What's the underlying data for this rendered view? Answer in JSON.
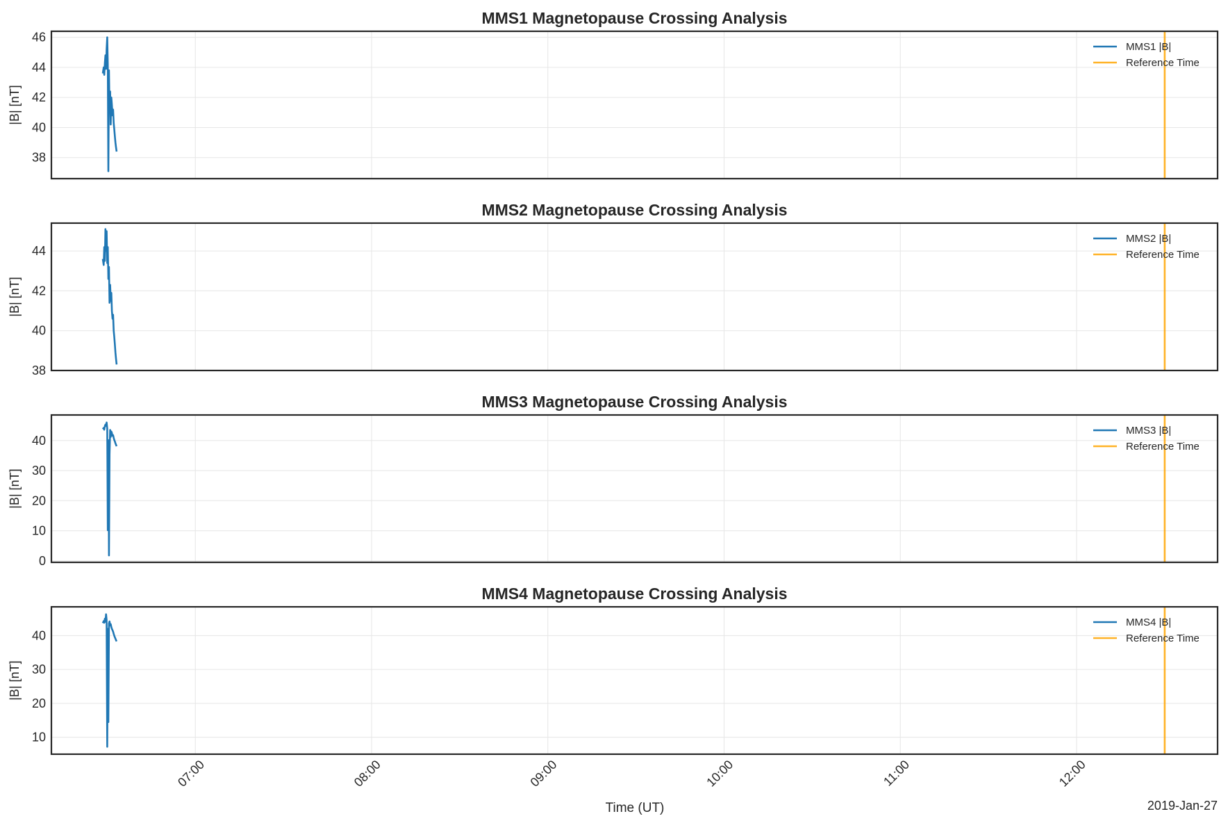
{
  "figure": {
    "xlabel": "Time (UT)",
    "date_label": "2019-Jan-27",
    "colors": {
      "data": "#1f77b4",
      "reference": "#ffa500",
      "grid": "#e6e6e6",
      "frame": "#262626"
    }
  },
  "chart_data": [
    {
      "type": "line",
      "title": "MMS1 Magnetopause Crossing Analysis",
      "ylabel": "|B| [nT]",
      "xlabel": "",
      "xlim": [
        "06:11",
        "12:48"
      ],
      "ylim": [
        36.6,
        46.4
      ],
      "yticks": [
        38,
        40,
        42,
        44,
        46
      ],
      "xticks": [
        "07:00",
        "08:00",
        "09:00",
        "10:00",
        "11:00",
        "12:00"
      ],
      "grid": true,
      "legend_position": "top-right",
      "series": [
        {
          "name": "MMS1 |B|",
          "x": [
            "06:28:30",
            "06:28:48",
            "06:29:00",
            "06:29:12",
            "06:29:24",
            "06:29:36",
            "06:29:48",
            "06:30:00",
            "06:30:12",
            "06:30:24",
            "06:30:36",
            "06:30:48",
            "06:31:00",
            "06:31:12",
            "06:31:24",
            "06:31:36",
            "06:31:48",
            "06:32:00",
            "06:32:12",
            "06:32:24",
            "06:32:36",
            "06:32:48",
            "06:33:00",
            "06:33:12"
          ],
          "y": [
            43.6,
            44.0,
            43.5,
            44.3,
            44.8,
            43.9,
            45.2,
            46.0,
            44.2,
            37.1,
            43.8,
            41.0,
            42.4,
            40.2,
            42.0,
            41.5,
            40.8,
            41.2,
            40.3,
            39.9,
            39.4,
            39.0,
            38.7,
            38.4
          ]
        },
        {
          "name": "Reference Time",
          "x": [
            "12:30:00",
            "12:30:00"
          ],
          "y": [
            36.6,
            46.4
          ]
        }
      ]
    },
    {
      "type": "line",
      "title": "MMS2 Magnetopause Crossing Analysis",
      "ylabel": "|B| [nT]",
      "xlabel": "",
      "xlim": [
        "06:11",
        "12:48"
      ],
      "ylim": [
        38.0,
        45.4
      ],
      "yticks": [
        38,
        40,
        42,
        44
      ],
      "xticks": [
        "07:00",
        "08:00",
        "09:00",
        "10:00",
        "11:00",
        "12:00"
      ],
      "grid": true,
      "legend_position": "top-right",
      "series": [
        {
          "name": "MMS2 |B|",
          "x": [
            "06:28:30",
            "06:28:48",
            "06:29:00",
            "06:29:12",
            "06:29:24",
            "06:29:36",
            "06:29:48",
            "06:30:00",
            "06:30:12",
            "06:30:24",
            "06:30:36",
            "06:30:48",
            "06:31:00",
            "06:31:12",
            "06:31:24",
            "06:31:36",
            "06:31:48",
            "06:32:00",
            "06:32:12",
            "06:32:24",
            "06:32:36",
            "06:32:48",
            "06:33:00",
            "06:33:12"
          ],
          "y": [
            43.6,
            43.3,
            44.2,
            43.5,
            45.1,
            44.0,
            45.0,
            43.4,
            44.2,
            42.6,
            43.2,
            41.4,
            42.3,
            41.5,
            41.9,
            41.0,
            40.6,
            40.8,
            40.0,
            39.7,
            39.3,
            38.9,
            38.6,
            38.3
          ]
        },
        {
          "name": "Reference Time",
          "x": [
            "12:30:00",
            "12:30:00"
          ],
          "y": [
            38.0,
            45.4
          ]
        }
      ]
    },
    {
      "type": "line",
      "title": "MMS3 Magnetopause Crossing Analysis",
      "ylabel": "|B| [nT]",
      "xlabel": "",
      "xlim": [
        "06:11",
        "12:48"
      ],
      "ylim": [
        -0.5,
        48.5
      ],
      "yticks": [
        0,
        10,
        20,
        30,
        40
      ],
      "xticks": [
        "07:00",
        "08:00",
        "09:00",
        "10:00",
        "11:00",
        "12:00"
      ],
      "grid": true,
      "legend_position": "top-right",
      "series": [
        {
          "name": "MMS3 |B|",
          "x": [
            "06:28:30",
            "06:28:48",
            "06:29:00",
            "06:29:12",
            "06:29:24",
            "06:29:36",
            "06:29:48",
            "06:30:00",
            "06:30:12",
            "06:30:24",
            "06:30:36",
            "06:30:48",
            "06:31:00",
            "06:31:12",
            "06:31:24",
            "06:31:36",
            "06:31:48",
            "06:32:00",
            "06:32:12",
            "06:32:24",
            "06:32:36",
            "06:32:48",
            "06:33:00",
            "06:33:12"
          ],
          "y": [
            43.8,
            44.2,
            43.6,
            44.8,
            45.3,
            44.9,
            46.0,
            44.0,
            10.2,
            40.1,
            1.8,
            35.4,
            43.5,
            41.2,
            43.0,
            42.5,
            41.6,
            41.8,
            40.9,
            40.2,
            39.7,
            39.1,
            38.6,
            38.1
          ]
        },
        {
          "name": "Reference Time",
          "x": [
            "12:30:00",
            "12:30:00"
          ],
          "y": [
            -0.5,
            48.5
          ]
        }
      ]
    },
    {
      "type": "line",
      "title": "MMS4 Magnetopause Crossing Analysis",
      "ylabel": "|B| [nT]",
      "xlabel": "",
      "xlim": [
        "06:11",
        "12:48"
      ],
      "ylim": [
        5.0,
        48.5
      ],
      "yticks": [
        10,
        20,
        30,
        40
      ],
      "xticks": [
        "07:00",
        "08:00",
        "09:00",
        "10:00",
        "11:00",
        "12:00"
      ],
      "grid": true,
      "legend_position": "top-right",
      "series": [
        {
          "name": "MMS4 |B|",
          "x": [
            "06:28:30",
            "06:28:48",
            "06:29:00",
            "06:29:12",
            "06:29:24",
            "06:29:36",
            "06:29:48",
            "06:30:00",
            "06:30:12",
            "06:30:24",
            "06:30:36",
            "06:30:48",
            "06:31:00",
            "06:31:12",
            "06:31:24",
            "06:31:36",
            "06:31:48",
            "06:32:00",
            "06:32:12",
            "06:32:24",
            "06:32:36",
            "06:32:48",
            "06:33:00",
            "06:33:12"
          ],
          "y": [
            43.7,
            44.3,
            43.8,
            45.0,
            44.1,
            46.3,
            44.6,
            7.2,
            42.0,
            14.5,
            43.6,
            44.2,
            43.0,
            43.4,
            42.5,
            42.0,
            41.6,
            41.2,
            40.5,
            40.0,
            39.5,
            39.1,
            38.7,
            38.3
          ]
        },
        {
          "name": "Reference Time",
          "x": [
            "12:30:00",
            "12:30:00"
          ],
          "y": [
            5.0,
            48.5
          ]
        }
      ]
    }
  ]
}
